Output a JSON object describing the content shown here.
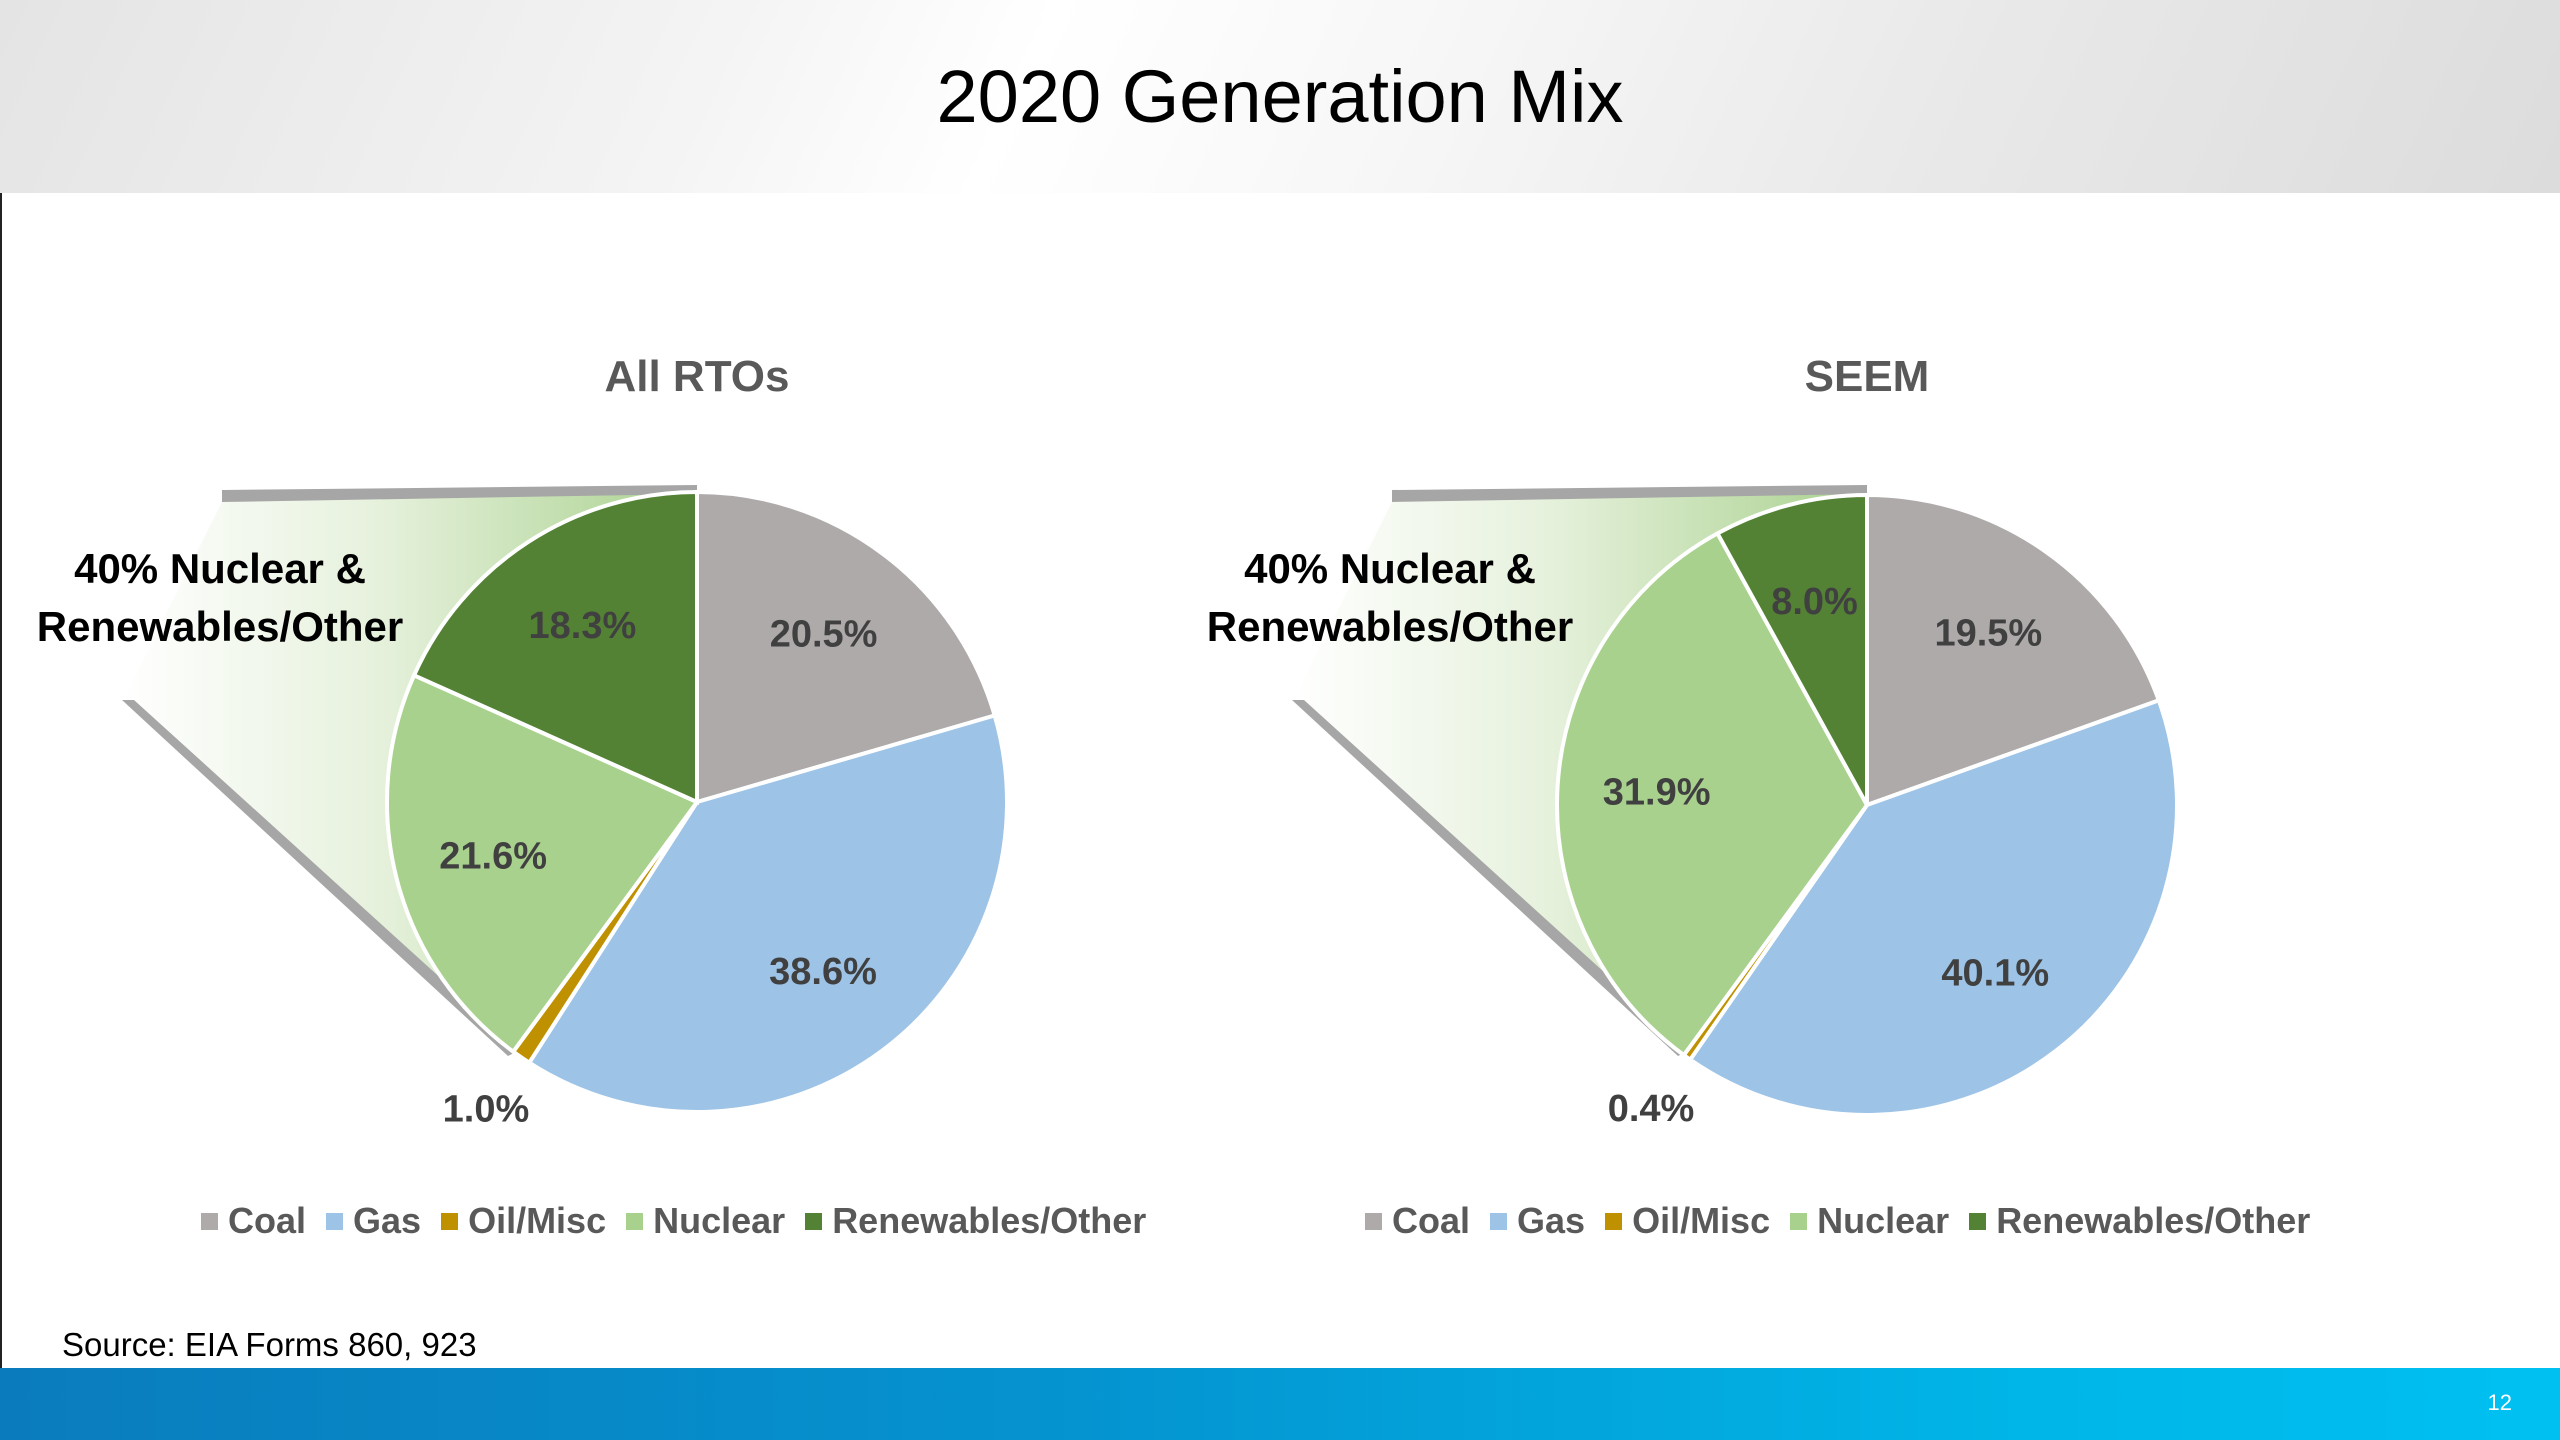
{
  "slide": {
    "title": "2020 Generation Mix",
    "source": "Source: EIA Forms 860, 923",
    "page_number": "12"
  },
  "colors": {
    "Coal": "#aeaaaa",
    "Gas": "#9dc3e6",
    "Oil/Misc": "#bf9000",
    "Nuclear": "#a9d18e",
    "Renewables/Other": "#548235"
  },
  "chart_data": [
    {
      "type": "pie",
      "title": "All RTOs",
      "callout": "40% Nuclear & Renewables/Other",
      "categories": [
        "Coal",
        "Gas",
        "Oil/Misc",
        "Nuclear",
        "Renewables/Other"
      ],
      "values": [
        20.5,
        38.6,
        1.0,
        21.6,
        18.3
      ],
      "labels": [
        "20.5%",
        "38.6%",
        "1.0%",
        "21.6%",
        "18.3%"
      ],
      "legend": "bottom"
    },
    {
      "type": "pie",
      "title": "SEEM",
      "callout": "40% Nuclear & Renewables/Other",
      "categories": [
        "Coal",
        "Gas",
        "Oil/Misc",
        "Nuclear",
        "Renewables/Other"
      ],
      "values": [
        19.5,
        40.1,
        0.4,
        31.9,
        8.0
      ],
      "labels": [
        "19.5%",
        "40.1%",
        "0.4%",
        "31.9%",
        "8.0%"
      ],
      "legend": "bottom"
    }
  ]
}
